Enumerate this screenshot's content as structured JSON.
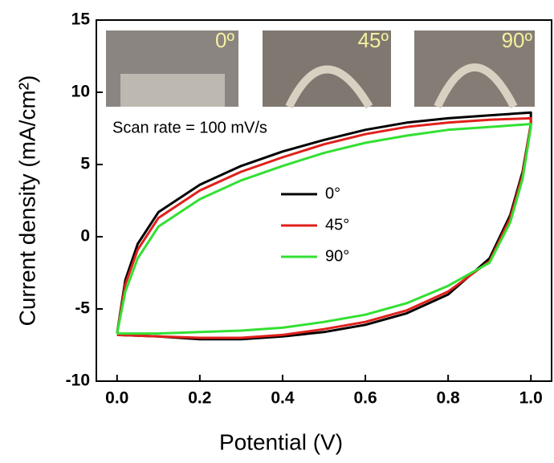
{
  "chart_data": {
    "type": "line",
    "xlabel": "Potential (V)",
    "ylabel": "Current density (mA/cm²)",
    "annotation": "Scan rate = 100 mV/s",
    "photo_labels": [
      "0º",
      "45º",
      "90º"
    ],
    "x": [
      0,
      0.02,
      0.05,
      0.1,
      0.2,
      0.3,
      0.4,
      0.5,
      0.6,
      0.7,
      0.8,
      0.9,
      1.0,
      1.0,
      0.98,
      0.95,
      0.9,
      0.8,
      0.7,
      0.6,
      0.5,
      0.4,
      0.3,
      0.2,
      0.1,
      0
    ],
    "series": [
      {
        "name": "0°",
        "color": "#000000",
        "values": [
          -6.7,
          -3,
          -0.5,
          1.7,
          3.6,
          4.9,
          5.9,
          6.7,
          7.4,
          7.9,
          8.2,
          8.4,
          8.6,
          7.8,
          4.5,
          1.5,
          -1.5,
          -4.0,
          -5.3,
          -6.1,
          -6.6,
          -6.9,
          -7.1,
          -7.1,
          -6.9,
          -6.8
        ]
      },
      {
        "name": "45°",
        "color": "#e0201b",
        "values": [
          -6.7,
          -3.3,
          -0.9,
          1.3,
          3.2,
          4.5,
          5.5,
          6.4,
          7.1,
          7.6,
          7.9,
          8.1,
          8.2,
          7.8,
          4.3,
          1.3,
          -1.7,
          -3.8,
          -5.1,
          -5.9,
          -6.4,
          -6.8,
          -7.0,
          -7.0,
          -6.9,
          -6.8
        ]
      },
      {
        "name": "90°",
        "color": "#33e033",
        "values": [
          -6.7,
          -3.8,
          -1.5,
          0.7,
          2.6,
          3.9,
          4.9,
          5.8,
          6.5,
          7.0,
          7.4,
          7.6,
          7.8,
          7.6,
          4.0,
          1.0,
          -1.8,
          -3.4,
          -4.6,
          -5.4,
          -5.9,
          -6.3,
          -6.5,
          -6.6,
          -6.7,
          -6.7
        ]
      }
    ],
    "xlim": [
      -0.05,
      1.05
    ],
    "ylim": [
      -10,
      15
    ],
    "xticks": [
      {
        "value": 0,
        "label": "0.0"
      },
      {
        "value": 0.2,
        "label": "0.2"
      },
      {
        "value": 0.4,
        "label": "0.4"
      },
      {
        "value": 0.6,
        "label": "0.6"
      },
      {
        "value": 0.8,
        "label": "0.8"
      },
      {
        "value": 1.0,
        "label": "1.0"
      }
    ],
    "yticks": [
      -10,
      -5,
      0,
      5,
      10,
      15
    ],
    "legend": "center"
  }
}
